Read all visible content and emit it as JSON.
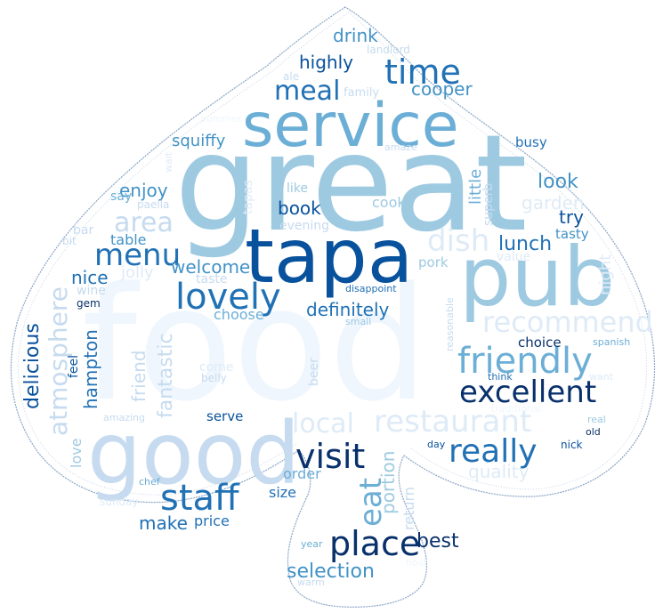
{
  "cloud": {
    "palette": {
      "darkest": "#08306b",
      "dark": "#08519c",
      "mid_dark": "#2171b5",
      "mid": "#4292c6",
      "mid_light": "#6baed6",
      "light": "#9ecae1",
      "lighter": "#c6dbef",
      "lightest": "#deebf7",
      "faint": "#eff6fd",
      "outline": "#8aa6c8"
    },
    "words": [
      {
        "text": "food",
        "tone": "faint"
      },
      {
        "text": "great",
        "tone": "light"
      },
      {
        "text": "tapa",
        "tone": "dark"
      },
      {
        "text": "pub",
        "tone": "light"
      },
      {
        "text": "service",
        "tone": "mid_light"
      },
      {
        "text": "good",
        "tone": "lighter"
      },
      {
        "text": "place",
        "tone": "darkest"
      },
      {
        "text": "staff",
        "tone": "mid_dark"
      },
      {
        "text": "excellent",
        "tone": "darkest"
      },
      {
        "text": "friendly",
        "tone": "mid_light"
      },
      {
        "text": "lovely",
        "tone": "mid_dark"
      },
      {
        "text": "time",
        "tone": "mid_dark"
      },
      {
        "text": "visit",
        "tone": "darkest"
      },
      {
        "text": "really",
        "tone": "mid_dark"
      },
      {
        "text": "menu",
        "tone": "mid_dark"
      },
      {
        "text": "restaurant",
        "tone": "lightest"
      },
      {
        "text": "recommend",
        "tone": "lightest"
      },
      {
        "text": "dish",
        "tone": "lightest"
      },
      {
        "text": "local",
        "tone": "lightest"
      },
      {
        "text": "atmosphere",
        "tone": "lighter"
      },
      {
        "text": "eat",
        "tone": "mid_light"
      },
      {
        "text": "meal",
        "tone": "mid_dark"
      },
      {
        "text": "area",
        "tone": "lighter"
      },
      {
        "text": "definitely",
        "tone": "mid_dark"
      },
      {
        "text": "welcome",
        "tone": "mid"
      },
      {
        "text": "selection",
        "tone": "mid"
      },
      {
        "text": "lunch",
        "tone": "mid_dark"
      },
      {
        "text": "best",
        "tone": "darkest"
      },
      {
        "text": "delicious",
        "tone": "dark"
      },
      {
        "text": "fantastic",
        "tone": "lighter"
      },
      {
        "text": "hampton",
        "tone": "mid_dark"
      },
      {
        "text": "portion",
        "tone": "light"
      },
      {
        "text": "quality",
        "tone": "lightest"
      },
      {
        "text": "highly",
        "tone": "dark"
      },
      {
        "text": "cooper",
        "tone": "mid"
      },
      {
        "text": "drink",
        "tone": "mid"
      },
      {
        "text": "look",
        "tone": "mid"
      },
      {
        "text": "garden",
        "tone": "lightest"
      },
      {
        "text": "try",
        "tone": "dark"
      },
      {
        "text": "nice",
        "tone": "mid_dark"
      },
      {
        "text": "make",
        "tone": "mid_dark"
      },
      {
        "text": "enjoy",
        "tone": "mid"
      },
      {
        "text": "book",
        "tone": "dark"
      },
      {
        "text": "squiffy",
        "tone": "mid"
      },
      {
        "text": "friend",
        "tone": "lighter"
      },
      {
        "text": "little",
        "tone": "mid_light"
      },
      {
        "text": "price",
        "tone": "mid_dark"
      },
      {
        "text": "return",
        "tone": "lighter"
      },
      {
        "text": "night",
        "tone": "lightest"
      },
      {
        "text": "love",
        "tone": "light"
      },
      {
        "text": "choose",
        "tone": "mid_light"
      },
      {
        "text": "serve",
        "tone": "dark"
      },
      {
        "text": "table",
        "tone": "mid"
      },
      {
        "text": "jolly",
        "tone": "lightest"
      },
      {
        "text": "size",
        "tone": "mid_dark"
      },
      {
        "text": "order",
        "tone": "mid_light"
      },
      {
        "text": "choice",
        "tone": "darkest"
      },
      {
        "text": "cook",
        "tone": "light"
      },
      {
        "text": "tasty",
        "tone": "mid"
      },
      {
        "text": "busy",
        "tone": "mid_dark"
      },
      {
        "text": "pork",
        "tone": "light"
      },
      {
        "text": "value",
        "tone": "lightest"
      },
      {
        "text": "superb",
        "tone": "lighter"
      },
      {
        "text": "evening",
        "tone": "lighter"
      },
      {
        "text": "like",
        "tone": "light"
      },
      {
        "text": "tapas",
        "tone": "lightest"
      },
      {
        "text": "taste",
        "tone": "lighter"
      },
      {
        "text": "feel",
        "tone": "dark"
      },
      {
        "text": "beer",
        "tone": "lighter"
      },
      {
        "text": "come",
        "tone": "lightest"
      },
      {
        "text": "belly",
        "tone": "lighter"
      },
      {
        "text": "say",
        "tone": "mid_light"
      },
      {
        "text": "bar",
        "tone": "lighter"
      },
      {
        "text": "wine",
        "tone": "lighter"
      },
      {
        "text": "family",
        "tone": "lighter"
      },
      {
        "text": "landlord",
        "tone": "lighter"
      },
      {
        "text": "ale",
        "tone": "lighter"
      },
      {
        "text": "wait",
        "tone": "lightest"
      },
      {
        "text": "paella",
        "tone": "lighter"
      },
      {
        "text": "bit",
        "tone": "lighter"
      },
      {
        "text": "gem",
        "tone": "darkest"
      },
      {
        "text": "amaze",
        "tone": "lighter"
      },
      {
        "text": "summer",
        "tone": "faint"
      },
      {
        "text": "disappoint",
        "tone": "mid_dark"
      },
      {
        "text": "small",
        "tone": "light"
      },
      {
        "text": "reasonable",
        "tone": "lighter"
      },
      {
        "text": "spanish",
        "tone": "mid_light"
      },
      {
        "text": "think",
        "tone": "mid_dark"
      },
      {
        "text": "want",
        "tone": "lightest"
      },
      {
        "text": "traditional",
        "tone": "faint"
      },
      {
        "text": "real",
        "tone": "light"
      },
      {
        "text": "old",
        "tone": "darkest"
      },
      {
        "text": "day",
        "tone": "dark"
      },
      {
        "text": "nick",
        "tone": "dark"
      },
      {
        "text": "amazing",
        "tone": "lighter"
      },
      {
        "text": "chef",
        "tone": "mid_light"
      },
      {
        "text": "sunday",
        "tone": "lightest"
      },
      {
        "text": "year",
        "tone": "mid_light"
      },
      {
        "text": "warm",
        "tone": "lighter"
      },
      {
        "text": "host",
        "tone": "faint"
      }
    ]
  }
}
